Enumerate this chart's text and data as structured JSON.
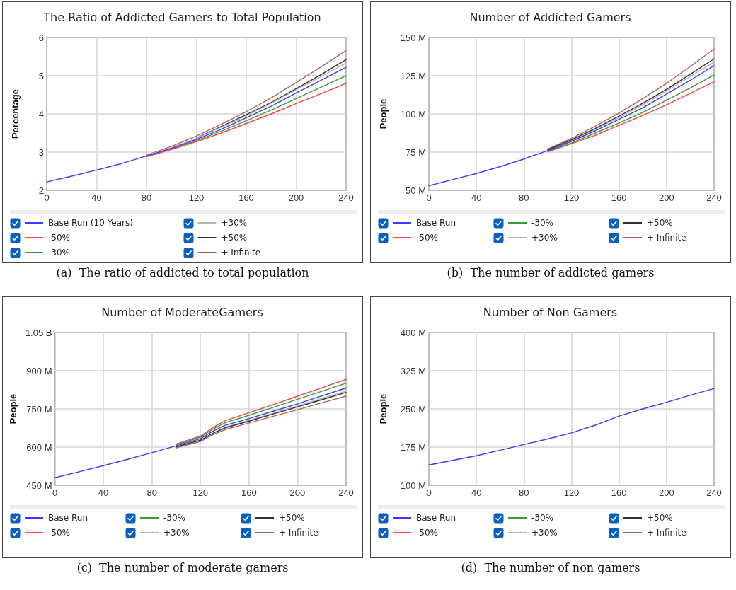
{
  "chart_data": [
    {
      "type": "line",
      "title": "The Ratio of Addicted Gamers to Total Population",
      "ylabel": "Percentage",
      "annotations": [
        "(a)  The ratio of addicted to total population"
      ],
      "x": [
        0,
        20,
        40,
        60,
        80,
        100,
        120,
        140,
        160,
        180,
        200,
        220,
        240
      ],
      "xlim": [
        0,
        240
      ],
      "xticks": [
        0,
        40,
        80,
        120,
        160,
        200,
        240
      ],
      "ylim": [
        2,
        6
      ],
      "yticks": [
        2,
        3,
        4,
        5,
        6
      ],
      "grid": true,
      "legend": "bottom",
      "series": [
        {
          "name": "Base Run (10 Years)",
          "color": "#3b3bff",
          "values": [
            2.22,
            2.37,
            2.53,
            2.7,
            2.9,
            3.1,
            3.33,
            3.6,
            3.9,
            4.2,
            4.55,
            4.88,
            5.22
          ]
        },
        {
          "name": "+30%",
          "color": "#b4b4b4",
          "values": [
            null,
            null,
            null,
            null,
            2.91,
            3.12,
            3.36,
            3.65,
            3.95,
            4.28,
            4.63,
            4.98,
            5.33
          ]
        },
        {
          "name": "-50%",
          "color": "#ff4040",
          "values": [
            null,
            null,
            null,
            null,
            2.88,
            3.07,
            3.27,
            3.5,
            3.75,
            4.0,
            4.27,
            4.53,
            4.8
          ]
        },
        {
          "name": "+50%",
          "color": "#303030",
          "values": [
            null,
            null,
            null,
            null,
            null,
            null,
            3.37,
            3.67,
            3.98,
            4.3,
            4.66,
            5.03,
            5.42
          ]
        },
        {
          "name": "-30%",
          "color": "#3a9a3a",
          "values": [
            null,
            null,
            null,
            null,
            null,
            3.08,
            3.3,
            3.55,
            3.82,
            4.1,
            4.4,
            4.7,
            5.0
          ]
        },
        {
          "name": "+ Infinite",
          "color": "#b06060",
          "values": [
            null,
            null,
            null,
            null,
            2.92,
            3.15,
            3.42,
            3.73,
            4.06,
            4.42,
            4.82,
            5.23,
            5.66
          ]
        }
      ]
    },
    {
      "type": "line",
      "title": "Number of Addicted Gamers",
      "ylabel": "People",
      "annotations": [
        "(b)  The number of addicted gamers"
      ],
      "x": [
        0,
        20,
        40,
        60,
        80,
        100,
        120,
        140,
        160,
        180,
        200,
        220,
        240
      ],
      "xlim": [
        0,
        240
      ],
      "xticks": [
        0,
        40,
        80,
        120,
        160,
        200,
        240
      ],
      "ylim": [
        50000000,
        150000000
      ],
      "yticks": [
        {
          "value": 50000000,
          "label": "50 M"
        },
        {
          "value": 75000000,
          "label": "75 M"
        },
        {
          "value": 100000000,
          "label": "100 M"
        },
        {
          "value": 125000000,
          "label": "125 M"
        },
        {
          "value": 150000000,
          "label": "150 M"
        }
      ],
      "grid": true,
      "legend": "bottom",
      "series": [
        {
          "name": "Base Run",
          "color": "#3b3bff",
          "values": [
            53000000,
            57000000,
            61000000,
            65500000,
            70500000,
            76000000,
            82000000,
            89000000,
            96500000,
            104000000,
            113000000,
            122000000,
            131500000
          ]
        },
        {
          "name": "-30%",
          "color": "#3a9a3a",
          "values": [
            null,
            null,
            null,
            null,
            null,
            75600000,
            81000000,
            87500000,
            94000000,
            101000000,
            109000000,
            117000000,
            125500000
          ]
        },
        {
          "name": "+50%",
          "color": "#303030",
          "values": [
            null,
            null,
            null,
            null,
            null,
            76500000,
            83000000,
            90500000,
            98500000,
            107000000,
            116000000,
            126000000,
            136000000
          ]
        },
        {
          "name": "-50%",
          "color": "#ff4040",
          "values": [
            null,
            null,
            null,
            null,
            null,
            75200000,
            80500000,
            86000000,
            92500000,
            99000000,
            106000000,
            113500000,
            121000000
          ]
        },
        {
          "name": "+30%",
          "color": "#b4b4b4",
          "values": [
            null,
            null,
            null,
            null,
            null,
            76300000,
            82500000,
            90000000,
            97500000,
            106000000,
            115000000,
            124500000,
            134000000
          ]
        },
        {
          "name": "+ Infinite",
          "color": "#b06060",
          "values": [
            null,
            null,
            null,
            null,
            null,
            77000000,
            84000000,
            92000000,
            100500000,
            110000000,
            120000000,
            131000000,
            142500000
          ]
        }
      ]
    },
    {
      "type": "line",
      "title": "Number of ModerateGamers",
      "ylabel": "People",
      "annotations": [
        "(c)  The number of moderate gamers"
      ],
      "x": [
        0,
        20,
        40,
        60,
        80,
        100,
        120,
        130,
        140,
        160,
        180,
        200,
        220,
        240
      ],
      "xlim": [
        0,
        240
      ],
      "xticks": [
        0,
        40,
        80,
        120,
        160,
        200,
        240
      ],
      "ylim": [
        450000000,
        1050000000
      ],
      "yticks": [
        {
          "value": 450000000,
          "label": "450 M"
        },
        {
          "value": 600000000,
          "label": "600 M"
        },
        {
          "value": 750000000,
          "label": "750 M"
        },
        {
          "value": 900000000,
          "label": "900 M"
        },
        {
          "value": 1050000000,
          "label": "1.05 B"
        }
      ],
      "grid": true,
      "legend": "bottom",
      "series": [
        {
          "name": "Base Run",
          "color": "#3b3bff",
          "values": [
            480000000,
            503000000,
            527000000,
            552000000,
            578000000,
            605000000,
            633000000,
            662000000,
            685000000,
            712000000,
            741000000,
            770000000,
            801000000,
            832000000
          ]
        },
        {
          "name": "-30%",
          "color": "#3a9a3a",
          "values": [
            null,
            null,
            null,
            null,
            null,
            609000000,
            639000000,
            670000000,
            695000000,
            725000000,
            756000000,
            788000000,
            819000000,
            851000000
          ]
        },
        {
          "name": "+50%",
          "color": "#303030",
          "values": [
            null,
            null,
            null,
            null,
            null,
            601000000,
            627000000,
            654000000,
            675000000,
            702000000,
            730000000,
            758000000,
            786000000,
            815000000
          ]
        },
        {
          "name": "-50%",
          "color": "#ff4040",
          "values": [
            null,
            null,
            null,
            null,
            null,
            612000000,
            643000000,
            676000000,
            703000000,
            735000000,
            767000000,
            800000000,
            833000000,
            866000000
          ]
        },
        {
          "name": "+30%",
          "color": "#b4b4b4",
          "values": [
            null,
            null,
            null,
            null,
            null,
            null,
            null,
            null,
            678000000,
            705000000,
            733000000,
            762000000,
            791000000,
            820000000
          ]
        },
        {
          "name": "+ Infinite",
          "color": "#b06060",
          "values": [
            null,
            null,
            null,
            null,
            null,
            597000000,
            622000000,
            648000000,
            668000000,
            695000000,
            721000000,
            747000000,
            774000000,
            800000000
          ]
        }
      ]
    },
    {
      "type": "line",
      "title": "Number of Non Gamers",
      "ylabel": "People",
      "annotations": [
        "(d)  The number of non gamers"
      ],
      "x": [
        0,
        20,
        40,
        60,
        80,
        100,
        120,
        140,
        160,
        180,
        200,
        220,
        240
      ],
      "xlim": [
        0,
        240
      ],
      "xticks": [
        0,
        40,
        80,
        120,
        160,
        200,
        240
      ],
      "ylim": [
        100000000,
        400000000
      ],
      "yticks": [
        {
          "value": 100000000,
          "label": "100 M"
        },
        {
          "value": 175000000,
          "label": "175 M"
        },
        {
          "value": 250000000,
          "label": "250 M"
        },
        {
          "value": 325000000,
          "label": "325 M"
        },
        {
          "value": 400000000,
          "label": "400 M"
        }
      ],
      "grid": true,
      "legend": "bottom",
      "series": [
        {
          "name": "Base Run",
          "color": "#3b3bff",
          "values": [
            140000000,
            149000000,
            158000000,
            169000000,
            180000000,
            191000000,
            203000000,
            218000000,
            236000000,
            250000000,
            263000000,
            277000000,
            290000000
          ]
        },
        {
          "name": "-30%",
          "color": "#3a9a3a",
          "values": [
            null,
            null,
            null,
            null,
            null,
            null,
            null,
            null,
            null,
            null,
            null,
            null,
            null
          ]
        },
        {
          "name": "+50%",
          "color": "#303030",
          "values": [
            null,
            null,
            null,
            null,
            null,
            null,
            null,
            null,
            null,
            null,
            null,
            null,
            null
          ]
        },
        {
          "name": "-50%",
          "color": "#ff4040",
          "values": [
            null,
            null,
            null,
            null,
            null,
            null,
            null,
            null,
            null,
            null,
            null,
            null,
            null
          ]
        },
        {
          "name": "+30%",
          "color": "#b4b4b4",
          "values": [
            null,
            null,
            null,
            null,
            null,
            null,
            null,
            null,
            null,
            null,
            null,
            null,
            null
          ]
        },
        {
          "name": "+ Infinite",
          "color": "#b06060",
          "values": [
            null,
            null,
            null,
            null,
            null,
            null,
            null,
            null,
            null,
            null,
            null,
            null,
            null
          ]
        }
      ]
    }
  ]
}
